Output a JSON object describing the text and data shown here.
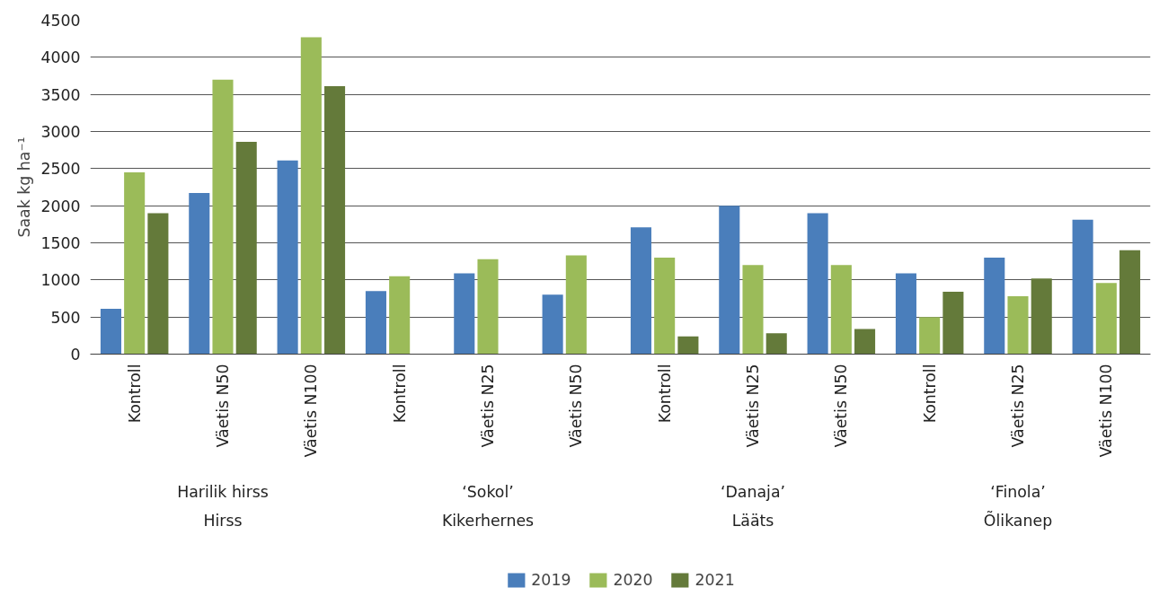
{
  "chart_data": {
    "type": "bar",
    "ylabel": "Saak kg ha⁻¹",
    "categories": [
      "Kontroll",
      "Väetis N50",
      "Väetis N100",
      "Kontroll",
      "Väetis N25",
      "Väetis N50",
      "Kontroll",
      "Väetis N25",
      "Väetis N50",
      "Kontroll",
      "Väetis N25",
      "Väetis N100"
    ],
    "series": [
      {
        "name": "2019",
        "color": "#4a7ebb",
        "values": [
          610,
          2170,
          2610,
          850,
          1090,
          800,
          1710,
          2000,
          1900,
          1090,
          1300,
          1810
        ]
      },
      {
        "name": "2020",
        "color": "#9bbb59",
        "values": [
          2450,
          3700,
          4270,
          1050,
          1280,
          1330,
          1300,
          1200,
          1200,
          500,
          780,
          960
        ]
      },
      {
        "name": "2021",
        "color": "#647a3a",
        "values": [
          1900,
          2860,
          3610,
          null,
          null,
          null,
          240,
          280,
          340,
          840,
          1020,
          1400
        ]
      }
    ],
    "ylim": [
      0,
      4500
    ],
    "yticks": [
      0,
      500,
      1000,
      1500,
      2000,
      2500,
      3000,
      3500,
      4000,
      4500
    ],
    "grid": "y",
    "legend": "bottom",
    "annotations": [
      "Harilik hirss\nHirss",
      "‘Sokol’\nKikerhernes",
      "‘Danaja’\nLääts",
      "‘Finola’\nÕlikanep"
    ]
  }
}
